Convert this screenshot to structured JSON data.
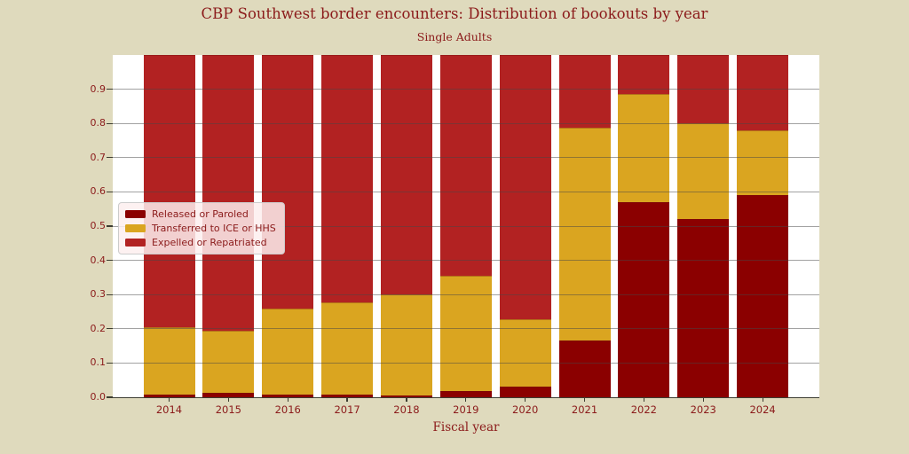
{
  "title": "CBP Southwest border encounters: Distribution of bookouts by year",
  "subtitle": "Single Adults",
  "chart_data": {
    "type": "bar",
    "stacked": true,
    "title": "CBP Southwest border encounters: Distribution of bookouts by year",
    "subtitle": "Single Adults",
    "xlabel": "Fiscal year",
    "ylabel": "",
    "categories": [
      "2014",
      "2015",
      "2016",
      "2017",
      "2018",
      "2019",
      "2020",
      "2021",
      "2022",
      "2023",
      "2024"
    ],
    "series": [
      {
        "name": "Released or Paroled",
        "color": "#8b0000",
        "values": [
          0.007,
          0.012,
          0.008,
          0.008,
          0.004,
          0.018,
          0.031,
          0.165,
          0.57,
          0.52,
          0.59
        ]
      },
      {
        "name": "Transferred to ICE or HHS",
        "color": "#daa520",
        "values": [
          0.198,
          0.183,
          0.25,
          0.269,
          0.296,
          0.336,
          0.197,
          0.623,
          0.316,
          0.28,
          0.19
        ]
      },
      {
        "name": "Expelled or Repatriated",
        "color": "#b22222",
        "values": [
          0.795,
          0.805,
          0.742,
          0.723,
          0.7,
          0.646,
          0.772,
          0.212,
          0.114,
          0.2,
          0.22
        ]
      }
    ],
    "ylim": [
      0,
      1.0
    ],
    "yticks": [
      0.0,
      0.1,
      0.2,
      0.3,
      0.4,
      0.5,
      0.6,
      0.7,
      0.8,
      0.9
    ],
    "grid": true,
    "gridlines_over_bars": true,
    "legend_position": "center-left"
  },
  "colors": {
    "background": "#dfdabd",
    "plot_background": "#ffffff",
    "text": "#8b1a1a",
    "grid": "rgba(70,70,70,0.5)",
    "axis": "#3d3d32",
    "legend_background": "rgba(253,238,238,0.85)",
    "legend_border": "#cccccc"
  }
}
